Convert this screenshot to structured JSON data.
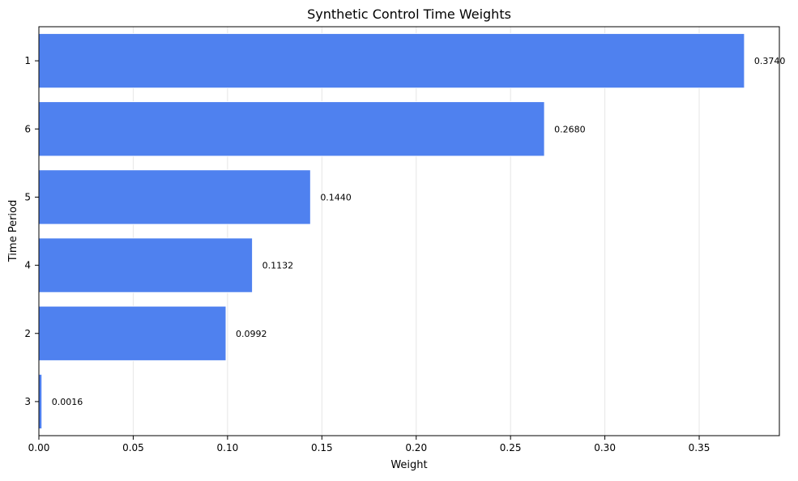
{
  "chart_data": {
    "type": "bar",
    "orientation": "horizontal",
    "title": "Synthetic Control Time Weights",
    "xlabel": "Weight",
    "ylabel": "Time Period",
    "categories": [
      "1",
      "6",
      "5",
      "4",
      "2",
      "3"
    ],
    "values": [
      0.374,
      0.268,
      0.144,
      0.1132,
      0.0992,
      0.0016
    ],
    "value_labels": [
      "0.3740",
      "0.2680",
      "0.1440",
      "0.1132",
      "0.0992",
      "0.0016"
    ],
    "xlim": [
      0,
      0.3925
    ],
    "xticks": [
      0,
      0.05,
      0.1,
      0.15,
      0.2,
      0.25,
      0.3,
      0.35
    ],
    "xtick_labels": [
      "0.00",
      "0.05",
      "0.10",
      "0.15",
      "0.20",
      "0.25",
      "0.30",
      "0.35"
    ],
    "grid": "x-axis vertical gridlines",
    "bar_color": "#4f81ef",
    "grid_color": "#e6e6e6"
  }
}
